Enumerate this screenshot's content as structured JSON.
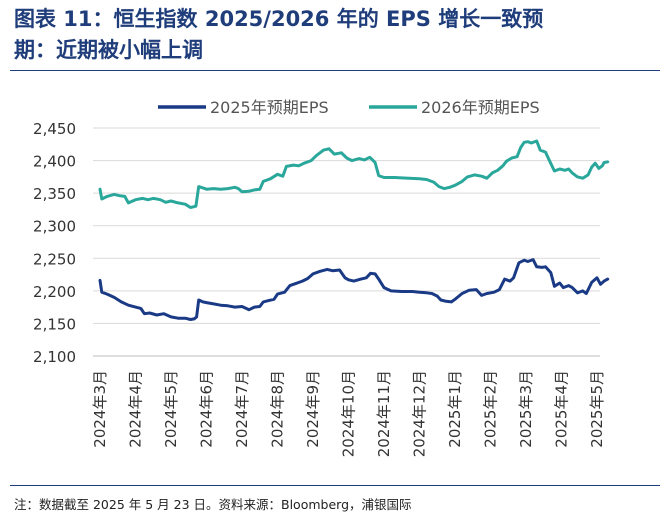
{
  "title_line1": "图表 11：恒生指数 2025/2026 年的 EPS 增长一致预",
  "title_line2": "期：近期被小幅上调",
  "source": "注：数据截至 2025 年 5 月 23 日。资料来源：Bloomberg，浦银国际",
  "colors": {
    "title": "#1f3d7a",
    "s2025": "#1a3a86",
    "s2026": "#2aa79b",
    "grid": "#d9d9d9"
  },
  "chart_data": {
    "type": "line",
    "title": "恒生指数 2025/2026 年的 EPS 增长一致预期：近期被小幅上调",
    "xlabel": "",
    "ylabel": "",
    "ylim": [
      2100,
      2450
    ],
    "yticks": [
      "2,100",
      "2,150",
      "2,200",
      "2,250",
      "2,300",
      "2,350",
      "2,400",
      "2,450"
    ],
    "ytick_values": [
      2100,
      2150,
      2200,
      2250,
      2300,
      2350,
      2400,
      2450
    ],
    "categories": [
      "2024年3月",
      "2024年4月",
      "2024年5月",
      "2024年6月",
      "2024年7月",
      "2024年8月",
      "2024年9月",
      "2024年10月",
      "2024年11月",
      "2024年12月",
      "2025年1月",
      "2025年2月",
      "2025年3月",
      "2025年4月",
      "2025年5月"
    ],
    "legend_position": "top",
    "grid": true,
    "series": [
      {
        "name": "2025年预期EPS",
        "color": "#1a3a86",
        "points": [
          [
            0,
            2216
          ],
          [
            0.05,
            2198
          ],
          [
            0.2,
            2195
          ],
          [
            0.4,
            2190
          ],
          [
            0.6,
            2183
          ],
          [
            0.8,
            2178
          ],
          [
            1.0,
            2175
          ],
          [
            1.15,
            2173
          ],
          [
            1.25,
            2165
          ],
          [
            1.4,
            2166
          ],
          [
            1.6,
            2163
          ],
          [
            1.8,
            2165
          ],
          [
            2.0,
            2160
          ],
          [
            2.2,
            2158
          ],
          [
            2.4,
            2158
          ],
          [
            2.55,
            2156
          ],
          [
            2.65,
            2157
          ],
          [
            2.72,
            2160
          ],
          [
            2.78,
            2186
          ],
          [
            2.9,
            2183
          ],
          [
            3.0,
            2182
          ],
          [
            3.2,
            2180
          ],
          [
            3.4,
            2178
          ],
          [
            3.6,
            2177
          ],
          [
            3.8,
            2175
          ],
          [
            4.0,
            2176
          ],
          [
            4.2,
            2171
          ],
          [
            4.35,
            2175
          ],
          [
            4.5,
            2176
          ],
          [
            4.6,
            2183
          ],
          [
            4.75,
            2185
          ],
          [
            4.9,
            2187
          ],
          [
            5.0,
            2195
          ],
          [
            5.2,
            2198
          ],
          [
            5.35,
            2208
          ],
          [
            5.5,
            2211
          ],
          [
            5.7,
            2215
          ],
          [
            5.85,
            2219
          ],
          [
            6.0,
            2226
          ],
          [
            6.2,
            2230
          ],
          [
            6.4,
            2233
          ],
          [
            6.55,
            2231
          ],
          [
            6.75,
            2232
          ],
          [
            6.9,
            2220
          ],
          [
            7.0,
            2217
          ],
          [
            7.15,
            2215
          ],
          [
            7.35,
            2218
          ],
          [
            7.5,
            2220
          ],
          [
            7.62,
            2227
          ],
          [
            7.75,
            2226
          ],
          [
            7.85,
            2218
          ],
          [
            8.0,
            2205
          ],
          [
            8.2,
            2200
          ],
          [
            8.5,
            2199
          ],
          [
            8.8,
            2199
          ],
          [
            9.0,
            2198
          ],
          [
            9.2,
            2197
          ],
          [
            9.35,
            2196
          ],
          [
            9.5,
            2192
          ],
          [
            9.6,
            2186
          ],
          [
            9.75,
            2184
          ],
          [
            9.9,
            2183
          ],
          [
            10.0,
            2187
          ],
          [
            10.2,
            2196
          ],
          [
            10.4,
            2201
          ],
          [
            10.6,
            2202
          ],
          [
            10.75,
            2193
          ],
          [
            10.9,
            2196
          ],
          [
            11.1,
            2198
          ],
          [
            11.25,
            2202
          ],
          [
            11.4,
            2218
          ],
          [
            11.55,
            2215
          ],
          [
            11.65,
            2220
          ],
          [
            11.8,
            2243
          ],
          [
            11.95,
            2247
          ],
          [
            12.05,
            2245
          ],
          [
            12.2,
            2248
          ],
          [
            12.3,
            2237
          ],
          [
            12.45,
            2236
          ],
          [
            12.55,
            2237
          ],
          [
            12.7,
            2228
          ],
          [
            12.8,
            2207
          ],
          [
            12.95,
            2212
          ],
          [
            13.05,
            2205
          ],
          [
            13.2,
            2208
          ],
          [
            13.3,
            2205
          ],
          [
            13.45,
            2197
          ],
          [
            13.6,
            2200
          ],
          [
            13.7,
            2196
          ],
          [
            13.85,
            2213
          ],
          [
            14.0,
            2220
          ],
          [
            14.1,
            2210
          ],
          [
            14.2,
            2215
          ],
          [
            14.3,
            2218
          ]
        ]
      },
      {
        "name": "2026年预期EPS",
        "color": "#2aa79b",
        "points": [
          [
            0,
            2356
          ],
          [
            0.05,
            2341
          ],
          [
            0.2,
            2345
          ],
          [
            0.4,
            2348
          ],
          [
            0.55,
            2346
          ],
          [
            0.7,
            2345
          ],
          [
            0.8,
            2335
          ],
          [
            1.0,
            2340
          ],
          [
            1.2,
            2342
          ],
          [
            1.35,
            2340
          ],
          [
            1.5,
            2342
          ],
          [
            1.7,
            2340
          ],
          [
            1.85,
            2336
          ],
          [
            2.0,
            2338
          ],
          [
            2.2,
            2335
          ],
          [
            2.4,
            2333
          ],
          [
            2.55,
            2328
          ],
          [
            2.7,
            2330
          ],
          [
            2.78,
            2360
          ],
          [
            2.9,
            2358
          ],
          [
            3.0,
            2356
          ],
          [
            3.2,
            2357
          ],
          [
            3.4,
            2356
          ],
          [
            3.6,
            2357
          ],
          [
            3.8,
            2359
          ],
          [
            3.9,
            2357
          ],
          [
            4.0,
            2352
          ],
          [
            4.2,
            2353
          ],
          [
            4.35,
            2355
          ],
          [
            4.5,
            2356
          ],
          [
            4.6,
            2368
          ],
          [
            4.8,
            2372
          ],
          [
            5.0,
            2379
          ],
          [
            5.15,
            2376
          ],
          [
            5.25,
            2391
          ],
          [
            5.45,
            2393
          ],
          [
            5.6,
            2392
          ],
          [
            5.75,
            2396
          ],
          [
            5.95,
            2400
          ],
          [
            6.1,
            2408
          ],
          [
            6.3,
            2416
          ],
          [
            6.45,
            2418
          ],
          [
            6.6,
            2410
          ],
          [
            6.8,
            2412
          ],
          [
            6.95,
            2404
          ],
          [
            7.1,
            2400
          ],
          [
            7.3,
            2403
          ],
          [
            7.45,
            2401
          ],
          [
            7.6,
            2405
          ],
          [
            7.75,
            2397
          ],
          [
            7.85,
            2377
          ],
          [
            8.0,
            2374
          ],
          [
            8.3,
            2374
          ],
          [
            8.7,
            2373
          ],
          [
            9.0,
            2372
          ],
          [
            9.2,
            2371
          ],
          [
            9.4,
            2367
          ],
          [
            9.55,
            2360
          ],
          [
            9.7,
            2357
          ],
          [
            9.85,
            2359
          ],
          [
            10.0,
            2362
          ],
          [
            10.2,
            2368
          ],
          [
            10.35,
            2375
          ],
          [
            10.55,
            2378
          ],
          [
            10.75,
            2376
          ],
          [
            10.9,
            2373
          ],
          [
            11.05,
            2381
          ],
          [
            11.2,
            2385
          ],
          [
            11.35,
            2392
          ],
          [
            11.45,
            2399
          ],
          [
            11.6,
            2404
          ],
          [
            11.75,
            2406
          ],
          [
            11.85,
            2420
          ],
          [
            11.95,
            2428
          ],
          [
            12.05,
            2429
          ],
          [
            12.15,
            2427
          ],
          [
            12.3,
            2430
          ],
          [
            12.4,
            2416
          ],
          [
            12.55,
            2413
          ],
          [
            12.65,
            2401
          ],
          [
            12.8,
            2384
          ],
          [
            12.95,
            2387
          ],
          [
            13.1,
            2385
          ],
          [
            13.2,
            2387
          ],
          [
            13.3,
            2381
          ],
          [
            13.45,
            2375
          ],
          [
            13.6,
            2373
          ],
          [
            13.75,
            2378
          ],
          [
            13.85,
            2390
          ],
          [
            13.95,
            2396
          ],
          [
            14.05,
            2388
          ],
          [
            14.15,
            2392
          ],
          [
            14.2,
            2397
          ],
          [
            14.3,
            2398
          ]
        ]
      }
    ]
  }
}
